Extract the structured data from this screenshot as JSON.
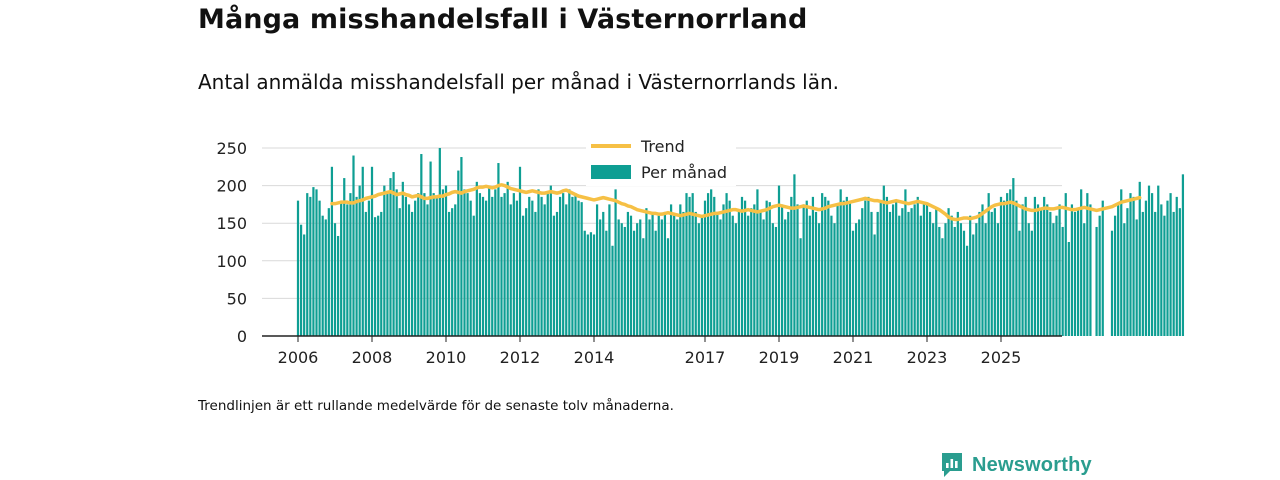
{
  "header": {
    "title": "Många misshandelsfall i Västernorrland",
    "subtitle": "Antal anmälda misshandelsfall per månad i Västernorrlands län."
  },
  "footer": {
    "note": "Trendlinjen är ett rullande medelvärde för de senaste tolv månaderna.",
    "brand": "Newsworthy"
  },
  "colors": {
    "bar": "#0e9e93",
    "trend": "#f6c045",
    "grid": "#d9d9d9",
    "axis": "#222222",
    "brand": "#2a9d8f"
  },
  "chart_data": {
    "type": "bar",
    "start": "2006-01",
    "title": "",
    "xlabel": "",
    "ylabel": "",
    "ylim": [
      0,
      260
    ],
    "yticks": [
      0,
      50,
      100,
      150,
      200,
      250
    ],
    "xticks": [
      "2006",
      "2008",
      "2010",
      "2012",
      "2014",
      "2017",
      "2019",
      "2021",
      "2023",
      "2025"
    ],
    "grid": true,
    "legend_position": "top-center",
    "series": [
      {
        "name": "Per månad",
        "type": "bar",
        "values": [
          180,
          148,
          135,
          190,
          185,
          198,
          195,
          180,
          160,
          155,
          170,
          225,
          150,
          133,
          180,
          210,
          175,
          190,
          240,
          185,
          200,
          225,
          165,
          180,
          225,
          158,
          160,
          165,
          200,
          190,
          210,
          218,
          195,
          170,
          205,
          185,
          175,
          165,
          180,
          190,
          242,
          190,
          175,
          232,
          190,
          185,
          250,
          195,
          200,
          165,
          170,
          175,
          220,
          238,
          195,
          190,
          180,
          160,
          205,
          190,
          185,
          180,
          200,
          185,
          195,
          230,
          185,
          190,
          205,
          175,
          190,
          180,
          225,
          160,
          170,
          185,
          180,
          165,
          195,
          185,
          175,
          190,
          200,
          160,
          165,
          185,
          190,
          175,
          195,
          185,
          190,
          180,
          178,
          140,
          135,
          138,
          135,
          175,
          155,
          165,
          140,
          175,
          120,
          195,
          155,
          150,
          145,
          165,
          160,
          140,
          150,
          155,
          130,
          170,
          155,
          165,
          140,
          160,
          155,
          165,
          130,
          175,
          160,
          155,
          175,
          165,
          190,
          185,
          190,
          165,
          150,
          160,
          180,
          190,
          195,
          185,
          165,
          155,
          175,
          190,
          180,
          160,
          150,
          165,
          185,
          180,
          160,
          170,
          175,
          195,
          165,
          155,
          180,
          178,
          150,
          145,
          200,
          175,
          155,
          165,
          185,
          215,
          175,
          130,
          175,
          180,
          160,
          185,
          165,
          150,
          190,
          185,
          180,
          160,
          150,
          175,
          195,
          180,
          185,
          180,
          140,
          150,
          155,
          170,
          180,
          185,
          165,
          135,
          165,
          180,
          200,
          185,
          165,
          175,
          180,
          160,
          170,
          195,
          165,
          170,
          175,
          185,
          160,
          175,
          175,
          165,
          150,
          170,
          145,
          130,
          150,
          170,
          160,
          145,
          165,
          150,
          140,
          120,
          160,
          135,
          150,
          165,
          175,
          150,
          190,
          165,
          170,
          150,
          185,
          180,
          190,
          195,
          210,
          180,
          140,
          175,
          185,
          150,
          140,
          185,
          175,
          170,
          185,
          175,
          165,
          150,
          160,
          175,
          145,
          190,
          125,
          175,
          165,
          170,
          195,
          150,
          190,
          175,
          0,
          145,
          160,
          180,
          0,
          0,
          140,
          160,
          175,
          195,
          150,
          170,
          190,
          185,
          155,
          205,
          165,
          180,
          200,
          190,
          165,
          200,
          175,
          160,
          180,
          190,
          165,
          185,
          170,
          215
        ]
      },
      {
        "name": "Trend",
        "type": "line",
        "start_index": 11,
        "values": [
          176,
          176,
          177,
          178,
          178,
          178,
          177,
          177,
          179,
          180,
          181,
          183,
          184,
          185,
          186,
          188,
          189,
          190,
          191,
          192,
          190,
          188,
          189,
          190,
          188,
          187,
          185,
          186,
          187,
          185,
          183,
          183,
          184,
          185,
          185,
          186,
          186,
          188,
          189,
          191,
          192,
          191,
          190,
          192,
          193,
          194,
          195,
          197,
          198,
          198,
          199,
          198,
          197,
          198,
          200,
          201,
          200,
          198,
          196,
          195,
          194,
          193,
          192,
          191,
          192,
          193,
          192,
          191,
          190,
          190,
          191,
          192,
          191,
          190,
          191,
          193,
          194,
          192,
          190,
          188,
          186,
          185,
          184,
          183,
          182,
          181,
          182,
          183,
          184,
          183,
          182,
          181,
          180,
          178,
          176,
          175,
          173,
          172,
          170,
          168,
          167,
          166,
          165,
          164,
          163,
          163,
          162,
          162,
          163,
          164,
          163,
          162,
          161,
          160,
          161,
          162,
          163,
          162,
          161,
          160,
          159,
          160,
          161,
          162,
          163,
          163,
          164,
          165,
          166,
          167,
          168,
          168,
          167,
          166,
          167,
          168,
          167,
          166,
          165,
          166,
          167,
          168,
          170,
          172,
          173,
          174,
          173,
          172,
          171,
          170,
          170,
          171,
          172,
          173,
          172,
          171,
          170,
          169,
          168,
          169,
          170,
          172,
          173,
          174,
          175,
          176,
          176,
          177,
          178,
          179,
          180,
          181,
          182,
          183,
          182,
          181,
          180,
          180,
          179,
          178,
          177,
          178,
          179,
          180,
          179,
          178,
          177,
          176,
          177,
          178,
          179,
          178,
          177,
          176,
          174,
          172,
          170,
          168,
          165,
          162,
          158,
          156,
          155,
          155,
          156,
          157,
          157,
          156,
          157,
          158,
          160,
          163,
          166,
          169,
          172,
          174,
          175,
          176,
          176,
          177,
          178,
          177,
          175,
          173,
          171,
          169,
          168,
          167,
          167,
          168,
          169,
          170,
          170,
          169,
          169,
          170,
          171,
          171,
          170,
          169,
          168,
          168,
          169,
          170,
          171,
          170,
          169,
          168,
          167,
          168,
          169,
          170,
          171,
          172,
          174,
          176,
          178,
          179,
          180,
          181,
          182,
          183,
          184
        ]
      }
    ]
  }
}
